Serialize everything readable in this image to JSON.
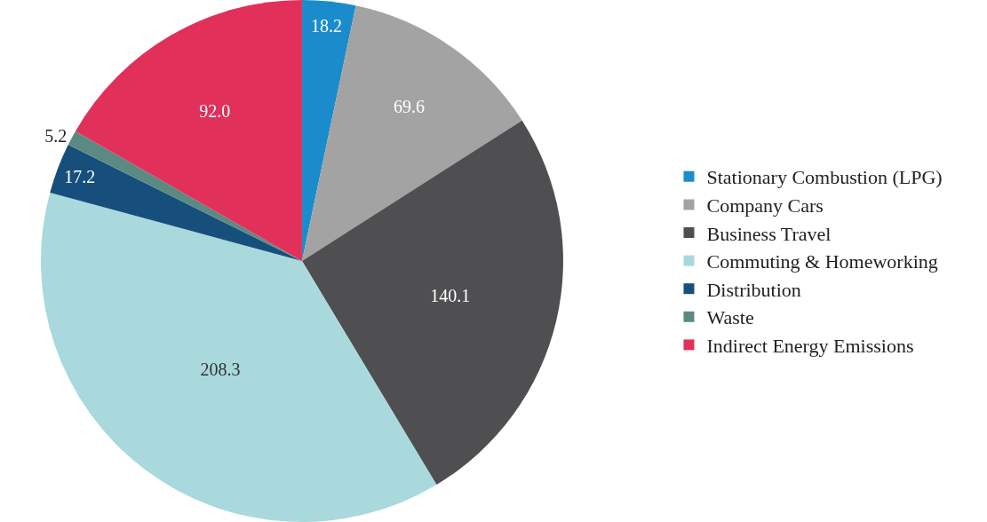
{
  "chart_data": {
    "type": "pie",
    "categories": [
      "Stationary Combustion (LPG)",
      "Company Cars",
      "Business Travel",
      "Commuting & Homeworking",
      "Distribution",
      "Waste",
      "Indirect Energy Emissions"
    ],
    "values": [
      18.2,
      69.6,
      140.1,
      208.3,
      17.2,
      5.2,
      92.0
    ],
    "value_labels": [
      "18.2",
      "69.6",
      "140.1",
      "208.3",
      "17.2",
      "5.2",
      "92.0"
    ],
    "colors": [
      "#1b8ccb",
      "#a3a3a3",
      "#4f4f52",
      "#a9d9dc",
      "#174f7c",
      "#5b8a82",
      "#e1305a"
    ],
    "legend": "right"
  }
}
